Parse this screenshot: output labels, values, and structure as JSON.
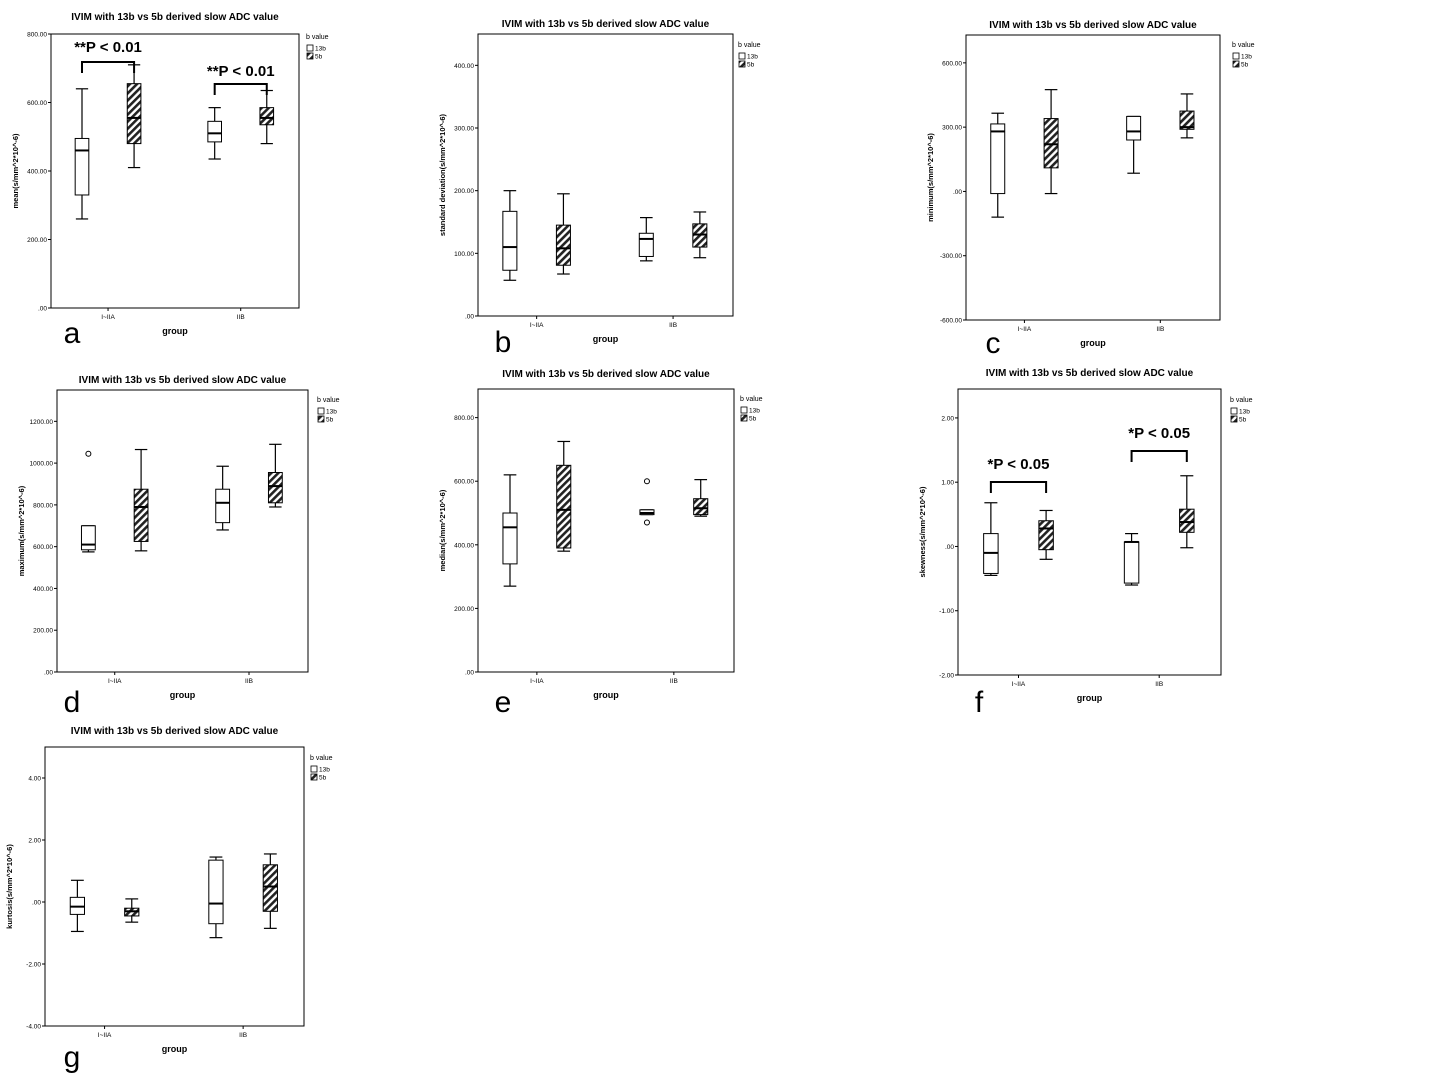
{
  "colors": {
    "frame": "#000000",
    "box_fill_13b": "#ffffff",
    "hatch": "#222222"
  },
  "chart_data": [
    {
      "panel_label": "a",
      "type": "boxplot",
      "title": "IVIM with 13b vs 5b derived slow ADC value",
      "xlabel": "group",
      "ylabel": "mean(s/mm^2*10^-6)",
      "ylim": [
        0,
        800
      ],
      "yticks": [
        0,
        200,
        400,
        600,
        800
      ],
      "ytick_labels": [
        ".00",
        "200.00",
        "400.00",
        "600.00",
        "800.00"
      ],
      "categories": [
        "I~IIA",
        "IIB"
      ],
      "legend": {
        "title": "b value",
        "items": [
          "13b",
          "5b"
        ]
      },
      "series": [
        {
          "name": "13b",
          "boxes": [
            {
              "whisker_low": 260,
              "q1": 330,
              "median": 460,
              "q3": 495,
              "whisker_high": 640,
              "outliers": []
            },
            {
              "whisker_low": 435,
              "q1": 485,
              "median": 510,
              "q3": 545,
              "whisker_high": 585,
              "outliers": []
            }
          ]
        },
        {
          "name": "5b",
          "boxes": [
            {
              "whisker_low": 410,
              "q1": 480,
              "median": 555,
              "q3": 655,
              "whisker_high": 710,
              "outliers": []
            },
            {
              "whisker_low": 480,
              "q1": 535,
              "median": 555,
              "q3": 585,
              "whisker_high": 635,
              "outliers": []
            }
          ]
        }
      ],
      "annotations": [
        {
          "text": "**P < 0.01",
          "group": 0
        },
        {
          "text": "**P < 0.01",
          "group": 1
        }
      ]
    },
    {
      "panel_label": "b",
      "type": "boxplot",
      "title": "IVIM with 13b vs 5b derived slow ADC value",
      "xlabel": "group",
      "ylabel": "standard deviation(s/mm^2*10^-6)",
      "ylim": [
        0,
        450
      ],
      "yticks": [
        0,
        100,
        200,
        300,
        400
      ],
      "ytick_labels": [
        ".00",
        "100.00",
        "200.00",
        "300.00",
        "400.00"
      ],
      "categories": [
        "I~IIA",
        "IIB"
      ],
      "legend": {
        "title": "b value",
        "items": [
          "13b",
          "5b"
        ]
      },
      "series": [
        {
          "name": "13b",
          "boxes": [
            {
              "whisker_low": 57,
              "q1": 73,
              "median": 110,
              "q3": 167,
              "whisker_high": 200,
              "outliers": []
            },
            {
              "whisker_low": 88,
              "q1": 95,
              "median": 123,
              "q3": 132,
              "whisker_high": 157,
              "outliers": []
            }
          ]
        },
        {
          "name": "5b",
          "boxes": [
            {
              "whisker_low": 67,
              "q1": 81,
              "median": 108,
              "q3": 145,
              "whisker_high": 195,
              "outliers": []
            },
            {
              "whisker_low": 93,
              "q1": 110,
              "median": 130,
              "q3": 147,
              "whisker_high": 166,
              "outliers": []
            }
          ]
        }
      ],
      "annotations": []
    },
    {
      "panel_label": "c",
      "type": "boxplot",
      "title": "IVIM with 13b vs 5b derived slow ADC value",
      "xlabel": "group",
      "ylabel": "minimum(s/mm^2*10^-6)",
      "ylim": [
        -600,
        730
      ],
      "yticks": [
        -600,
        -300,
        0,
        300,
        600
      ],
      "ytick_labels": [
        "-600.00",
        "-300.00",
        ".00",
        "300.00",
        "600.00"
      ],
      "categories": [
        "I~IIA",
        "IIB"
      ],
      "legend": {
        "title": "b value",
        "items": [
          "13b",
          "5b"
        ]
      },
      "series": [
        {
          "name": "13b",
          "boxes": [
            {
              "whisker_low": -120,
              "q1": -10,
              "median": 280,
              "q3": 315,
              "whisker_high": 365,
              "outliers": []
            },
            {
              "whisker_low": 85,
              "q1": 240,
              "median": 280,
              "q3": 350,
              "whisker_high": 350,
              "outliers": []
            }
          ]
        },
        {
          "name": "5b",
          "boxes": [
            {
              "whisker_low": -10,
              "q1": 110,
              "median": 220,
              "q3": 340,
              "whisker_high": 475,
              "outliers": []
            },
            {
              "whisker_low": 250,
              "q1": 290,
              "median": 300,
              "q3": 375,
              "whisker_high": 455,
              "outliers": []
            }
          ]
        }
      ],
      "annotations": []
    },
    {
      "panel_label": "d",
      "type": "boxplot",
      "title": "IVIM with 13b vs 5b derived slow ADC value",
      "xlabel": "group",
      "ylabel": "maximum(s/mm^2*10^-6)",
      "ylim": [
        0,
        1350
      ],
      "yticks": [
        0,
        200,
        400,
        600,
        800,
        1000,
        1200
      ],
      "ytick_labels": [
        ".00",
        "200.00",
        "400.00",
        "600.00",
        "800.00",
        "1000.00",
        "1200.00"
      ],
      "categories": [
        "I~IIA",
        "IIB"
      ],
      "legend": {
        "title": "b value",
        "items": [
          "13b",
          "5b"
        ]
      },
      "series": [
        {
          "name": "13b",
          "boxes": [
            {
              "whisker_low": 575,
              "q1": 585,
              "median": 610,
              "q3": 700,
              "whisker_high": 700,
              "outliers": [
                1045
              ]
            },
            {
              "whisker_low": 680,
              "q1": 715,
              "median": 810,
              "q3": 875,
              "whisker_high": 985,
              "outliers": []
            }
          ]
        },
        {
          "name": "5b",
          "boxes": [
            {
              "whisker_low": 580,
              "q1": 625,
              "median": 790,
              "q3": 875,
              "whisker_high": 1065,
              "outliers": []
            },
            {
              "whisker_low": 790,
              "q1": 810,
              "median": 890,
              "q3": 955,
              "whisker_high": 1090,
              "outliers": []
            }
          ]
        }
      ],
      "annotations": []
    },
    {
      "panel_label": "e",
      "type": "boxplot",
      "title": "IVIM with 13b vs 5b derived slow ADC value",
      "xlabel": "group",
      "ylabel": "median(s/mm^2*10^-6)",
      "ylim": [
        0,
        890
      ],
      "yticks": [
        0,
        200,
        400,
        600,
        800
      ],
      "ytick_labels": [
        ".00",
        "200.00",
        "400.00",
        "600.00",
        "800.00"
      ],
      "categories": [
        "I~IIA",
        "IIB"
      ],
      "legend": {
        "title": "b value",
        "items": [
          "13b",
          "5b"
        ]
      },
      "series": [
        {
          "name": "13b",
          "boxes": [
            {
              "whisker_low": 270,
              "q1": 340,
              "median": 455,
              "q3": 500,
              "whisker_high": 620,
              "outliers": []
            },
            {
              "whisker_low": 495,
              "q1": 495,
              "median": 500,
              "q3": 510,
              "whisker_high": 510,
              "outliers": [
                600,
                470
              ]
            }
          ]
        },
        {
          "name": "5b",
          "boxes": [
            {
              "whisker_low": 380,
              "q1": 390,
              "median": 510,
              "q3": 650,
              "whisker_high": 725,
              "outliers": []
            },
            {
              "whisker_low": 490,
              "q1": 495,
              "median": 515,
              "q3": 545,
              "whisker_high": 605,
              "outliers": []
            }
          ]
        }
      ],
      "annotations": []
    },
    {
      "panel_label": "f",
      "type": "boxplot",
      "title": "IVIM with 13b vs 5b derived slow ADC value",
      "xlabel": "group",
      "ylabel": "skewness(s/mm^2*10^-6)",
      "ylim": [
        -2,
        2.45
      ],
      "yticks": [
        -2,
        -1,
        0,
        1,
        2
      ],
      "ytick_labels": [
        "-2.00",
        "-1.00",
        ".00",
        "1.00",
        "2.00"
      ],
      "categories": [
        "I~IIA",
        "IIB"
      ],
      "legend": {
        "title": "b value",
        "items": [
          "13b",
          "5b"
        ]
      },
      "series": [
        {
          "name": "13b",
          "boxes": [
            {
              "whisker_low": -0.45,
              "q1": -0.42,
              "median": -0.1,
              "q3": 0.2,
              "whisker_high": 0.68,
              "outliers": []
            },
            {
              "whisker_low": -0.6,
              "q1": -0.57,
              "median": 0.07,
              "q3": 0.07,
              "whisker_high": 0.2,
              "outliers": []
            }
          ]
        },
        {
          "name": "5b",
          "boxes": [
            {
              "whisker_low": -0.2,
              "q1": -0.05,
              "median": 0.28,
              "q3": 0.4,
              "whisker_high": 0.56,
              "outliers": []
            },
            {
              "whisker_low": -0.02,
              "q1": 0.22,
              "median": 0.38,
              "q3": 0.58,
              "whisker_high": 1.1,
              "outliers": []
            }
          ]
        }
      ],
      "annotations": [
        {
          "text": "*P < 0.05",
          "group": 0
        },
        {
          "text": "*P < 0.05",
          "group": 1
        }
      ]
    },
    {
      "panel_label": "g",
      "type": "boxplot",
      "title": "IVIM with 13b vs 5b derived slow ADC value",
      "xlabel": "group",
      "ylabel": "kurtosis(s/mm^2*10^-6)",
      "ylim": [
        -4,
        5
      ],
      "yticks": [
        -4,
        -2,
        0,
        2,
        4
      ],
      "ytick_labels": [
        "-4.00",
        "-2.00",
        ".00",
        "2.00",
        "4.00"
      ],
      "categories": [
        "I~IIA",
        "IIB"
      ],
      "legend": {
        "title": "b value",
        "items": [
          "13b",
          "5b"
        ]
      },
      "series": [
        {
          "name": "13b",
          "boxes": [
            {
              "whisker_low": -0.95,
              "q1": -0.4,
              "median": -0.15,
              "q3": 0.15,
              "whisker_high": 0.7,
              "outliers": []
            },
            {
              "whisker_low": -1.15,
              "q1": -0.7,
              "median": -0.05,
              "q3": 1.35,
              "whisker_high": 1.45,
              "outliers": []
            }
          ]
        },
        {
          "name": "5b",
          "boxes": [
            {
              "whisker_low": -0.65,
              "q1": -0.45,
              "median": -0.3,
              "q3": -0.2,
              "whisker_high": 0.1,
              "outliers": []
            },
            {
              "whisker_low": -0.85,
              "q1": -0.3,
              "median": 0.5,
              "q3": 1.2,
              "whisker_high": 1.55,
              "outliers": []
            }
          ]
        }
      ],
      "annotations": []
    }
  ]
}
